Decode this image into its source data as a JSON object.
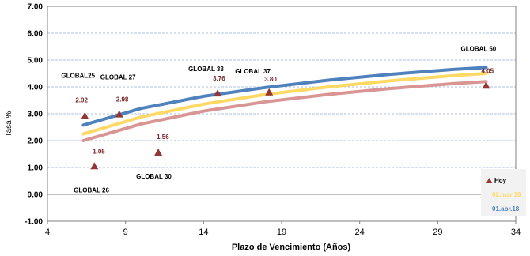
{
  "chart_data": {
    "type": "scatter",
    "title": "",
    "xlabel": "Plazo de Vencimiento  (Años)",
    "ylabel": "Tasa %",
    "xlim": [
      4,
      34
    ],
    "ylim": [
      -1,
      7
    ],
    "xticks": [
      "4",
      "9",
      "14",
      "19",
      "24",
      "29",
      "34"
    ],
    "yticks": [
      "-1.00",
      "0.00",
      "1.00",
      "2.00",
      "3.00",
      "4.00",
      "5.00",
      "6.00",
      "7.00"
    ],
    "grid": true,
    "legend_position": "bottom-right",
    "colors": {
      "hoy": "#943634",
      "mar19": "#ffd966",
      "abr18": "#4f81bd",
      "grid": "#8eaadb",
      "hoy_curve": "#d99594",
      "legend_bg": "#f2f2f2"
    },
    "points": [
      {
        "name": "GLOBAL25",
        "x": 6.4,
        "y": 2.92,
        "label": "2.92",
        "show_value": true
      },
      {
        "name": "GLOBAL 26",
        "x": 7.0,
        "y": 1.05,
        "label": "1.05",
        "show_value": true
      },
      {
        "name": "GLOBAL 27",
        "x": 8.6,
        "y": 2.98,
        "label": "2.98",
        "show_value": true
      },
      {
        "name": "GLOBAL 30",
        "x": 11.1,
        "y": 1.56,
        "label": "1.56",
        "show_value": true
      },
      {
        "name": "GLOBAL 33",
        "x": 14.9,
        "y": 3.76,
        "label": "3.76",
        "show_value": true
      },
      {
        "name": "GLOBAL 37",
        "x": 18.2,
        "y": 3.8,
        "label": "3.80",
        "show_value": true
      },
      {
        "name": "GLOBAL 50",
        "x": 32.1,
        "y": 4.05,
        "label": "4.05",
        "show_value": true
      }
    ],
    "series": [
      {
        "name": "Hoy",
        "type": "scatter+curve",
        "x": [
          6.3,
          10,
          14,
          18,
          22,
          26,
          30,
          32.1
        ],
        "y": [
          2.0,
          2.62,
          3.1,
          3.45,
          3.72,
          3.94,
          4.12,
          4.2
        ]
      },
      {
        "name": "02.mar.19",
        "type": "line",
        "x": [
          6.3,
          10,
          14,
          18,
          22,
          26,
          30,
          32.1
        ],
        "y": [
          2.25,
          2.88,
          3.36,
          3.72,
          4.0,
          4.23,
          4.42,
          4.5
        ]
      },
      {
        "name": "01.abr.18",
        "type": "line",
        "x": [
          6.3,
          10,
          14,
          18,
          22,
          26,
          30,
          32.1
        ],
        "y": [
          2.58,
          3.2,
          3.65,
          3.98,
          4.25,
          4.47,
          4.65,
          4.72
        ]
      }
    ]
  }
}
